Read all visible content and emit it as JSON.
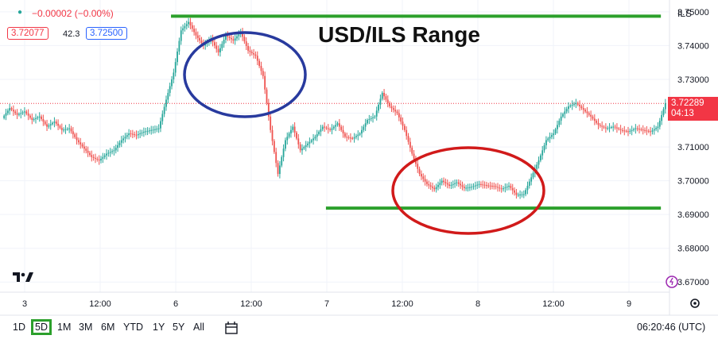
{
  "header": {
    "change_text": "−0.00002 (−0.00%)",
    "bid": "3.72077",
    "spread": "42.3",
    "ask": "3.72500",
    "symbol_menu": "ILS"
  },
  "current_price": {
    "label": "3.72289",
    "countdown": "04:13",
    "value": 3.72289
  },
  "toolbar": {
    "timeframes": [
      "1D",
      "5D",
      "1M",
      "3M",
      "6M",
      "YTD",
      "1Y",
      "5Y",
      "All"
    ],
    "active": "5D",
    "clock": "06:20:46 (UTC)"
  },
  "colors": {
    "up": "#26a69a",
    "down": "#ef5350",
    "level": "#2ca02c",
    "ellipse_top": "#283a9e",
    "ellipse_bottom": "#d11a1a",
    "accent": "#f23645"
  },
  "chart_data": {
    "type": "line",
    "title": "USD/ILS Range",
    "x_tick_labels": [
      "3",
      "12:00",
      "6",
      "12:00",
      "7",
      "12:00",
      "8",
      "12:00",
      "9"
    ],
    "y_tick_labels": [
      "3.75000",
      "3.74000",
      "3.73000",
      "3.72000",
      "3.71000",
      "3.70000",
      "3.69000",
      "3.68000",
      "3.67000"
    ],
    "ylim": [
      3.667,
      3.7535
    ],
    "grid": true,
    "range_lines": [
      {
        "level": 3.7487,
        "x_from": 0.256,
        "x_to": 0.999
      },
      {
        "level": 3.6919,
        "x_from": 0.488,
        "x_to": 0.999
      }
    ],
    "series": [
      {
        "values": [
          3.7185,
          3.7215,
          3.7195,
          3.7205,
          3.718,
          3.719,
          3.716,
          3.7175,
          3.715,
          3.7155,
          3.712,
          3.7095,
          3.707,
          3.706,
          3.708,
          3.709,
          3.712,
          3.714,
          3.7135,
          3.7145,
          3.715,
          3.7155,
          3.724,
          3.732,
          3.7445,
          3.747,
          3.743,
          3.74,
          3.742,
          3.738,
          3.743,
          3.7415,
          3.744,
          3.7385,
          3.737,
          3.731,
          3.715,
          3.702,
          3.712,
          3.716,
          3.709,
          3.711,
          3.713,
          3.716,
          3.715,
          3.717,
          3.713,
          3.7125,
          3.714,
          3.718,
          3.719,
          3.726,
          3.722,
          3.72,
          3.715,
          3.708,
          3.702,
          3.699,
          3.6975,
          3.7,
          3.6985,
          3.6995,
          3.6978,
          3.6982,
          3.699,
          3.6986,
          3.6984,
          3.6975,
          3.6985,
          3.6958,
          3.696,
          3.701,
          3.706,
          3.712,
          3.714,
          3.719,
          3.722,
          3.723,
          3.721,
          3.719,
          3.7165,
          3.7155,
          3.716,
          3.715,
          3.7145,
          3.7155,
          3.715,
          3.7145,
          3.716,
          3.7229
        ]
      }
    ]
  }
}
